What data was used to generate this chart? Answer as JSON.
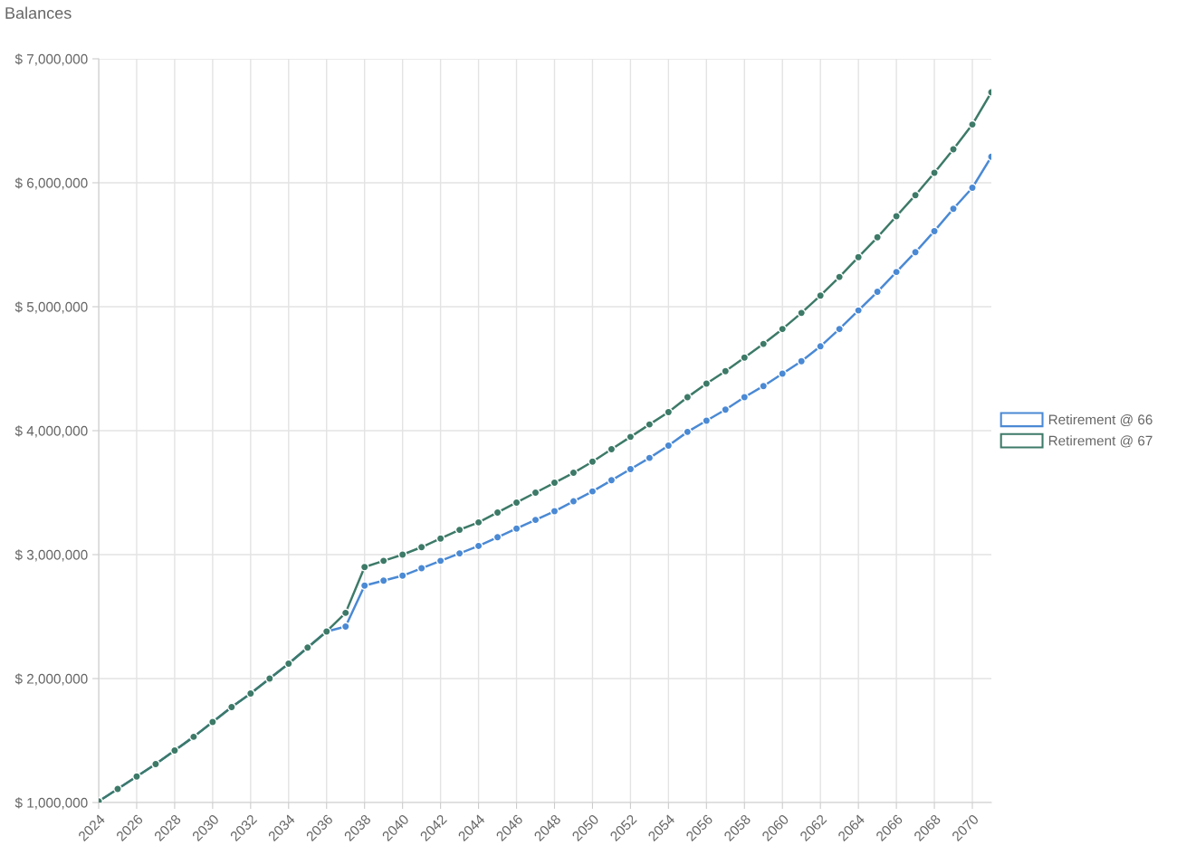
{
  "chart_data": {
    "type": "line",
    "title": "Balances",
    "x": [
      2024,
      2025,
      2026,
      2027,
      2028,
      2029,
      2030,
      2031,
      2032,
      2033,
      2034,
      2035,
      2036,
      2037,
      2038,
      2039,
      2040,
      2041,
      2042,
      2043,
      2044,
      2045,
      2046,
      2047,
      2048,
      2049,
      2050,
      2051,
      2052,
      2053,
      2054,
      2055,
      2056,
      2057,
      2058,
      2059,
      2060,
      2061,
      2062,
      2063,
      2064,
      2065,
      2066,
      2067,
      2068,
      2069,
      2070,
      2071
    ],
    "series": [
      {
        "name": "Retirement @ 66",
        "color": "#4a89d4",
        "values": [
          1010000,
          1110000,
          1210000,
          1310000,
          1420000,
          1530000,
          1650000,
          1770000,
          1880000,
          2000000,
          2120000,
          2250000,
          2380000,
          2420000,
          2750000,
          2790000,
          2830000,
          2890000,
          2950000,
          3010000,
          3070000,
          3140000,
          3210000,
          3280000,
          3350000,
          3430000,
          3510000,
          3600000,
          3690000,
          3780000,
          3880000,
          3990000,
          4080000,
          4170000,
          4270000,
          4360000,
          4460000,
          4560000,
          4680000,
          4820000,
          4970000,
          5120000,
          5280000,
          5440000,
          5610000,
          5790000,
          5960000,
          6210000
        ]
      },
      {
        "name": "Retirement @ 67",
        "color": "#3d7a68",
        "values": [
          1010000,
          1110000,
          1210000,
          1310000,
          1420000,
          1530000,
          1650000,
          1770000,
          1880000,
          2000000,
          2120000,
          2250000,
          2380000,
          2530000,
          2900000,
          2950000,
          3000000,
          3060000,
          3130000,
          3200000,
          3260000,
          3340000,
          3420000,
          3500000,
          3580000,
          3660000,
          3750000,
          3850000,
          3950000,
          4050000,
          4150000,
          4270000,
          4380000,
          4480000,
          4590000,
          4700000,
          4820000,
          4950000,
          5090000,
          5240000,
          5400000,
          5560000,
          5730000,
          5900000,
          6080000,
          6270000,
          6470000,
          6730000
        ]
      }
    ],
    "xlim": [
      2024,
      2071
    ],
    "xticks": [
      2024,
      2026,
      2028,
      2030,
      2032,
      2034,
      2036,
      2038,
      2040,
      2042,
      2044,
      2046,
      2048,
      2050,
      2052,
      2054,
      2056,
      2058,
      2060,
      2062,
      2064,
      2066,
      2068,
      2070
    ],
    "ylim": [
      1000000,
      7000000
    ],
    "yticks": [
      {
        "value": 1000000,
        "label": "$ 1,000,000"
      },
      {
        "value": 2000000,
        "label": "$ 2,000,000"
      },
      {
        "value": 3000000,
        "label": "$ 3,000,000"
      },
      {
        "value": 4000000,
        "label": "$ 4,000,000"
      },
      {
        "value": 5000000,
        "label": "$ 5,000,000"
      },
      {
        "value": 6000000,
        "label": "$ 6,000,000"
      },
      {
        "value": 7000000,
        "label": "$ 7,000,000"
      }
    ],
    "grid": true,
    "legend": "right",
    "marker": "circle",
    "line_style": "solid"
  }
}
